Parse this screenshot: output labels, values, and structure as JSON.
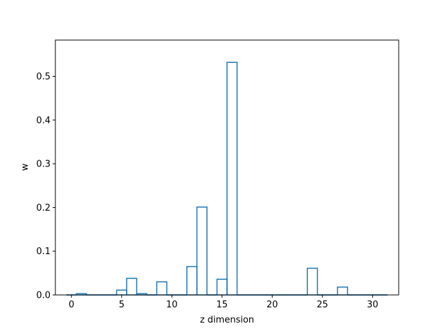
{
  "chart_data": {
    "type": "bar",
    "style": "step",
    "xlabel": "z dimension",
    "ylabel": "w",
    "xlim": [
      -1.6,
      32.6
    ],
    "ylim": [
      0,
      0.583
    ],
    "xticks": [
      0,
      5,
      10,
      15,
      20,
      25,
      30
    ],
    "xtick_labels": [
      "0",
      "5",
      "10",
      "15",
      "20",
      "25",
      "30"
    ],
    "yticks": [
      0.0,
      0.1,
      0.2,
      0.3,
      0.4,
      0.5
    ],
    "ytick_labels": [
      "0.0",
      "0.1",
      "0.2",
      "0.3",
      "0.4",
      "0.5"
    ],
    "grid": false,
    "line_color": "#1f77b4",
    "x": [
      0,
      1,
      2,
      3,
      4,
      5,
      6,
      7,
      8,
      9,
      10,
      11,
      12,
      13,
      14,
      15,
      16,
      17,
      18,
      19,
      20,
      21,
      22,
      23,
      24,
      25,
      26,
      27,
      28,
      29,
      30,
      31
    ],
    "values": [
      0.0,
      0.003,
      0.0,
      0.0,
      0.0,
      0.011,
      0.038,
      0.003,
      0.0,
      0.03,
      0.0,
      0.0,
      0.065,
      0.201,
      0.0,
      0.036,
      0.532,
      0.0,
      0.0,
      0.0,
      0.0,
      0.0,
      0.0,
      0.0,
      0.061,
      0.0,
      0.0,
      0.018,
      0.0,
      0.0,
      0.0,
      0.0
    ]
  }
}
